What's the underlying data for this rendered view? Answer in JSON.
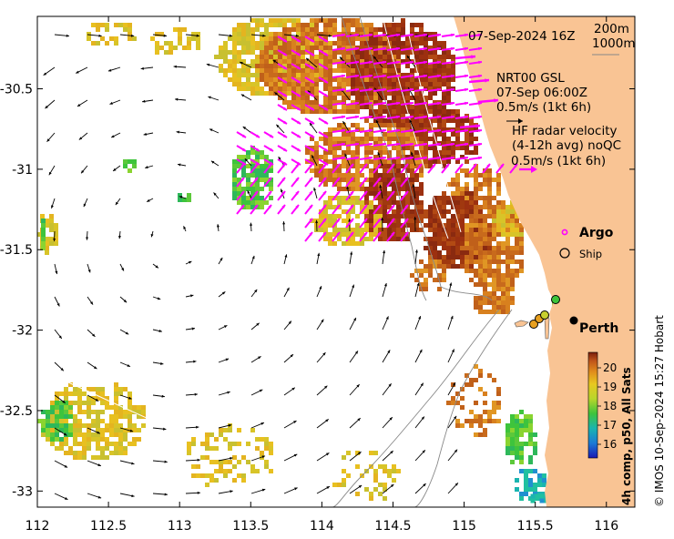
{
  "map": {
    "lon_ticks": [
      "112",
      "112.5",
      "113",
      "113.5",
      "114",
      "114.5",
      "115",
      "115.5",
      "116"
    ],
    "lat_ticks": [
      "-30.5",
      "-31",
      "-31.5",
      "-32",
      "-32.5",
      "-33"
    ],
    "lon_range": [
      112,
      116.2
    ],
    "lat_range": [
      -33.1,
      -30.05
    ]
  },
  "annotations": {
    "timestamp": "07-Sep-2024 16Z",
    "isobath_1": "200m",
    "isobath_2": "1000m",
    "gsl_title": "NRT00 GSL",
    "gsl_time": "07-Sep 06:00Z",
    "gsl_scale": "0.5m/s (1kt 6h)",
    "hf_title": "HF radar velocity",
    "hf_subtitle": "(4-12h avg) noQC",
    "hf_scale": "0.5m/s (1kt 6h)"
  },
  "legend": {
    "argo_label": "Argo",
    "ship_label": "Ship",
    "argo_color": "#ff00ff"
  },
  "places": [
    {
      "name": "Perth",
      "lon": 115.86,
      "lat": -31.95
    }
  ],
  "colorbar": {
    "title": "4h comp, p50, All Sats",
    "ticks": [
      "20",
      "19",
      "18",
      "17",
      "16"
    ]
  },
  "credit": "© IMOS 10-Sep-2024 15:27 Hobart",
  "colors": {
    "land": "#f9c494",
    "hf_vector": "#ff00ff",
    "gsl_vector": "#000000"
  }
}
